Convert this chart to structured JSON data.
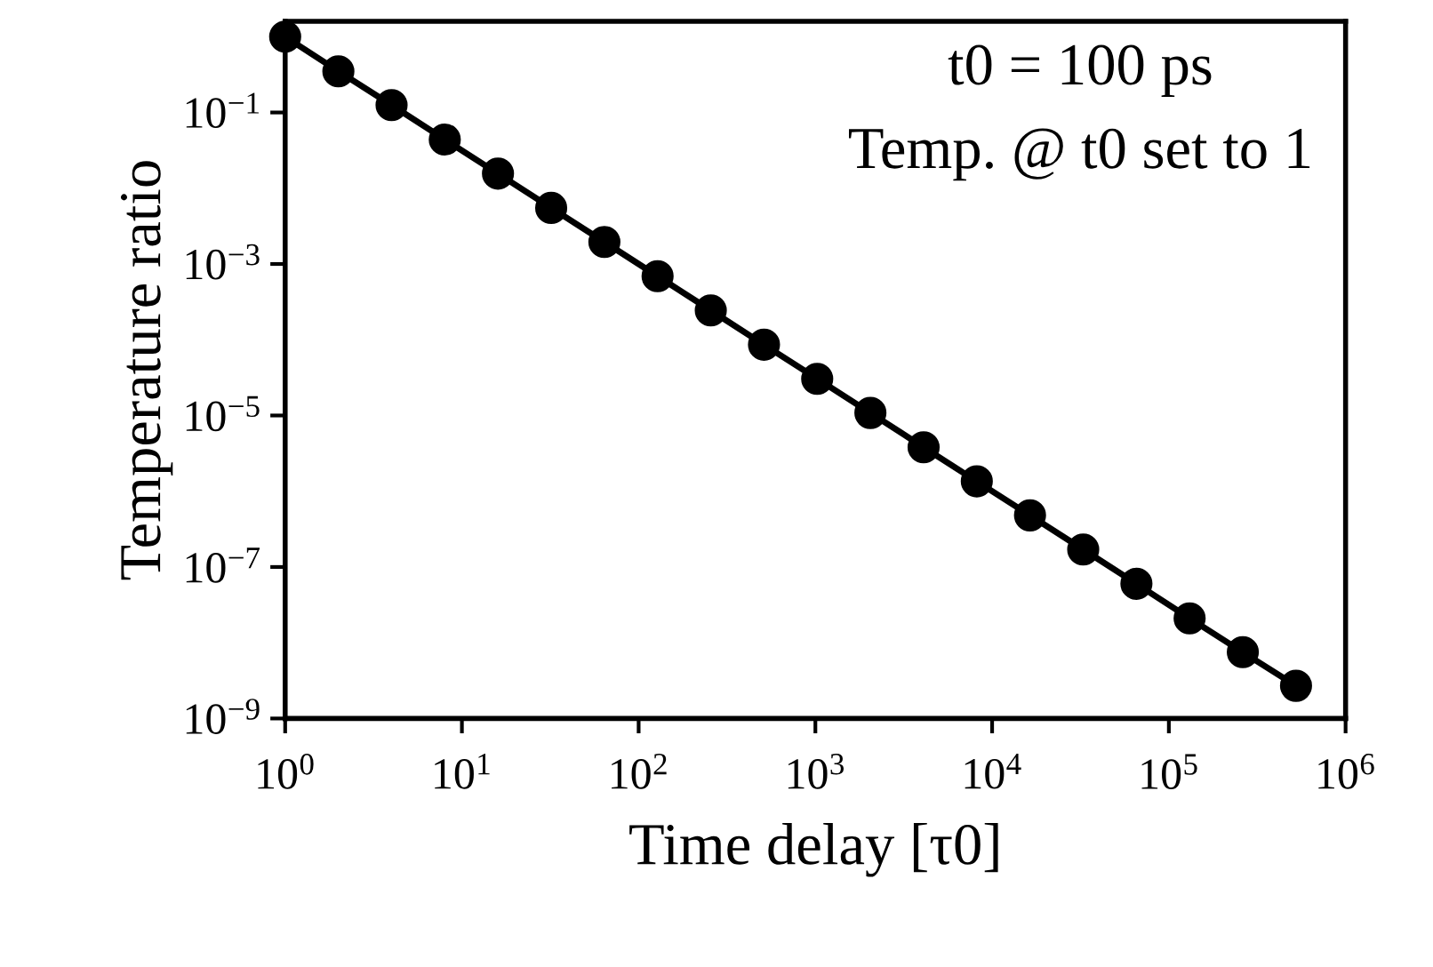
{
  "chart_data": {
    "type": "line",
    "xlabel": "Time delay [τ0]",
    "ylabel": "Temperature ratio",
    "log": "xy",
    "marker": "circle",
    "line_style": "solid",
    "grid": false,
    "legend": false,
    "x": [
      1,
      2,
      4,
      8,
      16,
      32,
      64,
      128,
      256,
      512,
      1024,
      2048,
      4096,
      8192,
      16384,
      32768,
      65536,
      131072,
      262144,
      524288
    ],
    "series": [
      {
        "color": "#000000",
        "values": [
          1,
          0.35,
          0.125,
          0.044,
          0.0156,
          0.0055,
          0.00195,
          0.00069,
          0.000244,
          8.6e-05,
          3.05e-05,
          1.08e-05,
          3.8e-06,
          1.35e-06,
          4.8e-07,
          1.7e-07,
          6e-08,
          2.1e-08,
          7.5e-09,
          2.7e-09
        ]
      }
    ],
    "xlim": [
      1,
      1000000
    ],
    "ylim": [
      1e-09,
      1.6
    ],
    "xticks": [
      {
        "value": 1,
        "label": "10$^{0}$"
      },
      {
        "value": 10,
        "label": "10$^{1}$"
      },
      {
        "value": 100,
        "label": "10$^{2}$"
      },
      {
        "value": 1000,
        "label": "10$^{3}$"
      },
      {
        "value": 10000,
        "label": "10$^{4}$"
      },
      {
        "value": 100000,
        "label": "10$^{5}$"
      },
      {
        "value": 1000000,
        "label": "10$^{6}$"
      }
    ],
    "yticks": [
      {
        "value": 1e-09,
        "label": "10$^{−9}$"
      },
      {
        "value": 1e-07,
        "label": "10$^{−7}$"
      },
      {
        "value": 1e-05,
        "label": "10$^{−5}$"
      },
      {
        "value": 0.001,
        "label": "10$^{−3}$"
      },
      {
        "value": 0.1,
        "label": "10$^{−1}$"
      }
    ],
    "annotations": [
      "t0 = 100 ps",
      "Temp. @ t0 set to 1"
    ]
  }
}
